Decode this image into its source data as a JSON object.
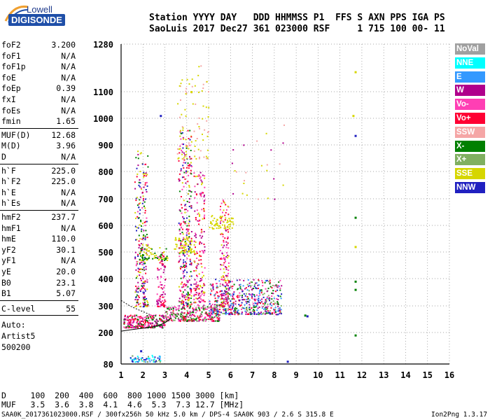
{
  "logo": {
    "line1": "Lowell",
    "line2": "DIGISONDE"
  },
  "header": {
    "line1": "Station YYYY DAY   DDD HHMMSS P1  FFS S AXN PPS IGA PS",
    "line2": "SaoLuis 2017 Dec27 361 023000 RSF     1 715 100 00- 11"
  },
  "params": {
    "group1": [
      {
        "label": "foF2",
        "value": "3.200"
      },
      {
        "label": "foF1",
        "value": "N/A"
      },
      {
        "label": "foF1p",
        "value": "N/A"
      },
      {
        "label": "foE",
        "value": "N/A"
      },
      {
        "label": "foEp",
        "value": "0.39"
      },
      {
        "label": "fxI",
        "value": "N/A"
      },
      {
        "label": "foEs",
        "value": "N/A"
      },
      {
        "label": "fmin",
        "value": "1.65"
      }
    ],
    "group2": [
      {
        "label": "MUF(D)",
        "value": "12.68"
      },
      {
        "label": "M(D)",
        "value": "3.96"
      },
      {
        "label": "D",
        "value": "N/A"
      }
    ],
    "group3": [
      {
        "label": "h`F",
        "value": "225.0"
      },
      {
        "label": "h`F2",
        "value": "225.0"
      },
      {
        "label": "h`E",
        "value": "N/A"
      },
      {
        "label": "h`Es",
        "value": "N/A"
      }
    ],
    "group4": [
      {
        "label": "hmF2",
        "value": "237.7"
      },
      {
        "label": "hmF1",
        "value": "N/A"
      },
      {
        "label": "hmE",
        "value": "110.0"
      },
      {
        "label": "yF2",
        "value": "30.1"
      },
      {
        "label": "yF1",
        "value": "N/A"
      },
      {
        "label": "yE",
        "value": "20.0"
      },
      {
        "label": "B0",
        "value": "23.1"
      },
      {
        "label": "B1",
        "value": "5.07"
      }
    ],
    "clevel": {
      "label": "C-level",
      "value": "55"
    }
  },
  "autoscale": {
    "line1": "Auto:",
    "line2": "Artist5",
    "line3": "500200"
  },
  "bottom": {
    "d_row": "D     100  200  400  600  800 1000 1500 3000 [km]",
    "muf_row": "MUF   3.5  3.6  3.8  4.1  4.6  5.3  7.3 12.7 [MHz]"
  },
  "footer": {
    "left": "SAA0K_2017361023000.RSF / 300fx256h 50 kHz 5.0 km / DPS-4 SAA0K 903 / 2.6 S 315.8 E",
    "right": "Ion2Png 1.3.17"
  },
  "legend": [
    {
      "label": "NoVal",
      "color": "#a0a0a0",
      "text_color": "#ffffff"
    },
    {
      "label": "NNE",
      "color": "#00ffff",
      "text_color": "#ffffff"
    },
    {
      "label": "E",
      "color": "#3399ff",
      "text_color": "#ffffff"
    },
    {
      "label": "W",
      "color": "#b0008c",
      "text_color": "#ffffff"
    },
    {
      "label": "Vo-",
      "color": "#ff3fb4",
      "text_color": "#ffffff"
    },
    {
      "label": "Vo+",
      "color": "#ff0033",
      "text_color": "#ffffff"
    },
    {
      "label": "SSW",
      "color": "#f5a6a6",
      "text_color": "#ffffff"
    },
    {
      "label": "X-",
      "color": "#008000",
      "text_color": "#ffffff"
    },
    {
      "label": "X+",
      "color": "#80b060",
      "text_color": "#ffffff"
    },
    {
      "label": "SSE",
      "color": "#d6d600",
      "text_color": "#ffffff"
    },
    {
      "label": "NNW",
      "color": "#2020c0",
      "text_color": "#ffffff"
    }
  ],
  "chart_data": {
    "type": "scatter",
    "xlim": [
      1,
      16
    ],
    "ylim": [
      80,
      1280
    ],
    "x_ticks": [
      "1",
      "2",
      "3",
      "4",
      "5",
      "6",
      "7",
      "8",
      "9",
      "10",
      "11",
      "12",
      "13",
      "14",
      "15",
      "16"
    ],
    "y_ticks": [
      "80",
      "200",
      "300",
      "400",
      "500",
      "600",
      "700",
      "800",
      "900",
      "1000",
      "1100",
      "1280"
    ],
    "y_tick_values": [
      80,
      200,
      300,
      400,
      500,
      600,
      700,
      800,
      900,
      1000,
      1100,
      1280
    ],
    "grid": true,
    "clusters": [
      {
        "x": [
          1.1,
          3.0
        ],
        "y": [
          220,
          270
        ],
        "n": 260,
        "colors": [
          "#ff0033",
          "#ff3fb4",
          "#b0008c",
          "#008000"
        ]
      },
      {
        "x": [
          3.0,
          5.5
        ],
        "y": [
          245,
          300
        ],
        "n": 300,
        "colors": [
          "#ff0033",
          "#ff3fb4",
          "#b0008c",
          "#008000",
          "#80b060"
        ]
      },
      {
        "x": [
          5.0,
          8.3
        ],
        "y": [
          270,
          400
        ],
        "n": 520,
        "colors": [
          "#ff0033",
          "#ff3fb4",
          "#b0008c",
          "#008000",
          "#80b060",
          "#3399ff",
          "#2020c0"
        ]
      },
      {
        "x": [
          1.6,
          2.2
        ],
        "y": [
          300,
          880
        ],
        "n": 260,
        "colors": [
          "#b0008c",
          "#ff3fb4",
          "#ff0033",
          "#2020c0",
          "#008000",
          "#d6d600"
        ]
      },
      {
        "x": [
          2.6,
          3.0
        ],
        "y": [
          300,
          500
        ],
        "n": 90,
        "colors": [
          "#b0008c",
          "#ff3fb4",
          "#ff0033"
        ]
      },
      {
        "x": [
          3.6,
          4.2
        ],
        "y": [
          300,
          960
        ],
        "n": 320,
        "colors": [
          "#b0008c",
          "#ff3fb4",
          "#ff0033",
          "#2020c0",
          "#d6d600",
          "#008000"
        ]
      },
      {
        "x": [
          4.3,
          4.8
        ],
        "y": [
          300,
          800
        ],
        "n": 180,
        "colors": [
          "#b0008c",
          "#ff3fb4",
          "#ff0033",
          "#d6d600"
        ]
      },
      {
        "x": [
          5.5,
          5.9
        ],
        "y": [
          300,
          700
        ],
        "n": 150,
        "colors": [
          "#b0008c",
          "#ff3fb4",
          "#ff0033",
          "#d6d600"
        ]
      },
      {
        "x": [
          1.7,
          3.1
        ],
        "y": [
          470,
          520
        ],
        "n": 70,
        "colors": [
          "#d6d600",
          "#008000"
        ]
      },
      {
        "x": [
          3.4,
          4.4
        ],
        "y": [
          500,
          560
        ],
        "n": 60,
        "colors": [
          "#d6d600"
        ]
      },
      {
        "x": [
          5.0,
          6.1
        ],
        "y": [
          590,
          640
        ],
        "n": 60,
        "colors": [
          "#d6d600"
        ]
      },
      {
        "x": [
          3.5,
          5.0
        ],
        "y": [
          850,
          1200
        ],
        "n": 90,
        "colors": [
          "#d6d600",
          "#f5a6a6"
        ]
      },
      {
        "x": [
          1.4,
          2.8
        ],
        "y": [
          90,
          115
        ],
        "n": 60,
        "colors": [
          "#80b060",
          "#3399ff",
          "#2020c0",
          "#00ffff"
        ]
      },
      {
        "x": [
          6.0,
          8.5
        ],
        "y": [
          700,
          1000
        ],
        "n": 25,
        "colors": [
          "#f5a6a6",
          "#d6d600",
          "#b0008c"
        ]
      }
    ],
    "points": [
      {
        "x": 9.4,
        "y": 265,
        "color": "#008000"
      },
      {
        "x": 9.5,
        "y": 262,
        "color": "#2020c0"
      },
      {
        "x": 8.6,
        "y": 90,
        "color": "#2020c0"
      },
      {
        "x": 11.6,
        "y": 1010,
        "color": "#d6d600"
      },
      {
        "x": 11.7,
        "y": 1175,
        "color": "#d6d600"
      },
      {
        "x": 11.7,
        "y": 935,
        "color": "#2020c0"
      },
      {
        "x": 11.7,
        "y": 630,
        "color": "#008000"
      },
      {
        "x": 11.7,
        "y": 520,
        "color": "#d6d600"
      },
      {
        "x": 11.7,
        "y": 390,
        "color": "#008000"
      },
      {
        "x": 11.7,
        "y": 360,
        "color": "#008000"
      },
      {
        "x": 11.7,
        "y": 190,
        "color": "#008000"
      },
      {
        "x": 2.8,
        "y": 1010,
        "color": "#2020c0"
      },
      {
        "x": 1.9,
        "y": 130,
        "color": "#2020c0"
      },
      {
        "x": 4.2,
        "y": 1100,
        "color": "#d6d600"
      }
    ],
    "profile_curve": {
      "x": [
        1.0,
        1.4,
        1.8,
        2.2,
        2.6,
        3.0,
        3.3
      ],
      "y": [
        205,
        210,
        214,
        218,
        224,
        236,
        255
      ]
    },
    "profile_curve2": {
      "x": [
        1.0,
        1.4,
        1.8,
        2.1,
        2.3
      ],
      "y": [
        320,
        300,
        285,
        275,
        268
      ]
    }
  }
}
